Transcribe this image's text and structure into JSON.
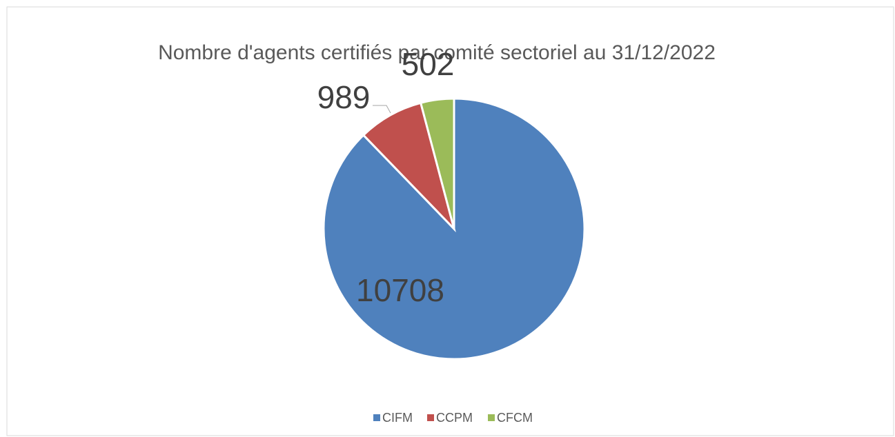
{
  "chart_data": {
    "type": "pie",
    "title": "Nombre d'agents certifiés par comité sectoriel au 31/12/2022",
    "categories": [
      "CIFM",
      "CCPM",
      "CFCM"
    ],
    "values": [
      10708,
      989,
      502
    ],
    "colors": [
      "#4f81bd",
      "#c0504d",
      "#9bbb59"
    ],
    "legend": "bottom"
  }
}
